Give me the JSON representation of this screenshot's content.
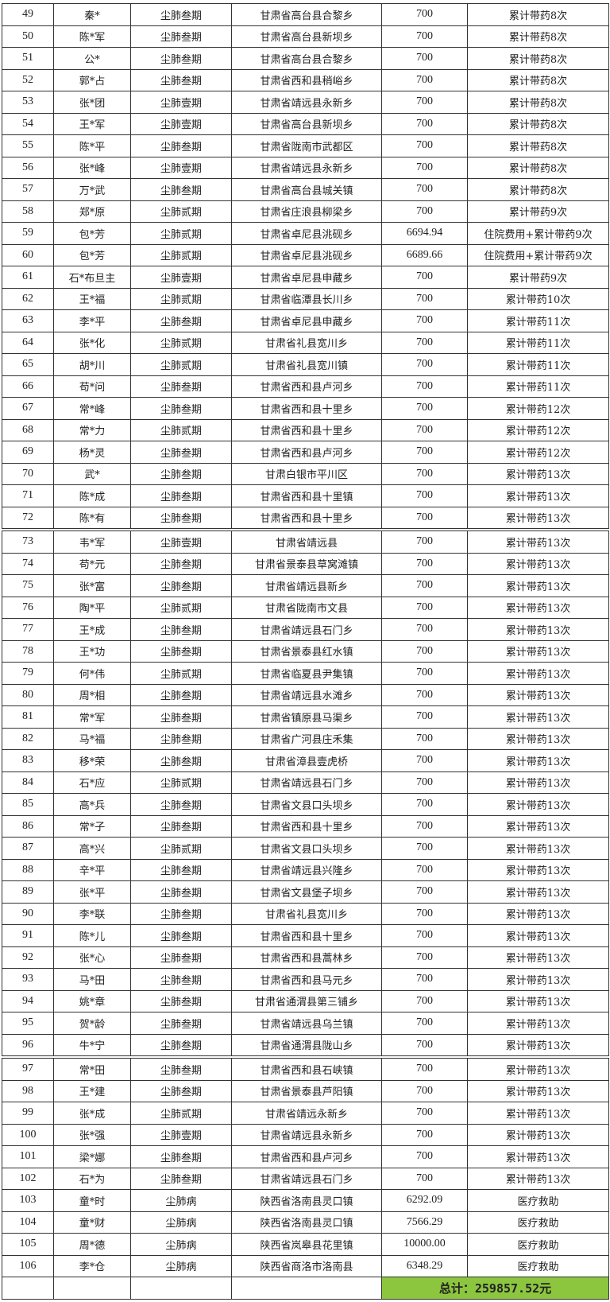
{
  "rows": [
    [
      "49",
      "秦*",
      "尘肺叁期",
      "甘肃省高台县合黎乡",
      "700",
      "累计带药8次"
    ],
    [
      "50",
      "陈*军",
      "尘肺叁期",
      "甘肃省高台县新坝乡",
      "700",
      "累计带药8次"
    ],
    [
      "51",
      "公*",
      "尘肺叁期",
      "甘肃省高台县合黎乡",
      "700",
      "累计带药8次"
    ],
    [
      "52",
      "郭*占",
      "尘肺叁期",
      "甘肃省西和县稍峪乡",
      "700",
      "累计带药8次"
    ],
    [
      "53",
      "张*团",
      "尘肺壹期",
      "甘肃省靖远县永新乡",
      "700",
      "累计带药8次"
    ],
    [
      "54",
      "王*军",
      "尘肺壹期",
      "甘肃省高台县新坝乡",
      "700",
      "累计带药8次"
    ],
    [
      "55",
      "陈*平",
      "尘肺叁期",
      "甘肃省陇南市武都区",
      "700",
      "累计带药8次"
    ],
    [
      "56",
      "张*峰",
      "尘肺壹期",
      "甘肃省靖远县永新乡",
      "700",
      "累计带药8次"
    ],
    [
      "57",
      "万*武",
      "尘肺叁期",
      "甘肃省高台县城关镇",
      "700",
      "累计带药8次"
    ],
    [
      "58",
      "郑*原",
      "尘肺贰期",
      "甘肃省庄浪县柳梁乡",
      "700",
      "累计带药9次"
    ],
    [
      "59",
      "包*芳",
      "尘肺贰期",
      "甘肃省卓尼县洮砚乡",
      "6694.94",
      "住院费用+累计带药9次"
    ],
    [
      "60",
      "包*芳",
      "尘肺贰期",
      "甘肃省卓尼县洮砚乡",
      "6689.66",
      "住院费用+累计带药9次"
    ],
    [
      "61",
      "石*布旦主",
      "尘肺壹期",
      "甘肃省卓尼县申藏乡",
      "700",
      "累计带药9次"
    ],
    [
      "62",
      "王*福",
      "尘肺贰期",
      "甘肃省临潭县长川乡",
      "700",
      "累计带药10次"
    ],
    [
      "63",
      "李*平",
      "尘肺叁期",
      "甘肃省卓尼县申藏乡",
      "700",
      "累计带药11次"
    ],
    [
      "64",
      "张*化",
      "尘肺贰期",
      "甘肃省礼县宽川乡",
      "700",
      "累计带药11次"
    ],
    [
      "65",
      "胡*川",
      "尘肺贰期",
      "甘肃省礼县宽川镇",
      "700",
      "累计带药11次"
    ],
    [
      "66",
      "苟*问",
      "尘肺叁期",
      "甘肃省西和县卢河乡",
      "700",
      "累计带药11次"
    ],
    [
      "67",
      "常*峰",
      "尘肺叁期",
      "甘肃省西和县十里乡",
      "700",
      "累计带药12次"
    ],
    [
      "68",
      "常*力",
      "尘肺贰期",
      "甘肃省西和县十里乡",
      "700",
      "累计带药12次"
    ],
    [
      "69",
      "杨*灵",
      "尘肺叁期",
      "甘肃省西和县卢河乡",
      "700",
      "累计带药12次"
    ],
    [
      "70",
      "武*",
      "尘肺叁期",
      "甘肃白银市平川区",
      "700",
      "累计带药13次"
    ],
    [
      "71",
      "陈*成",
      "尘肺叁期",
      "甘肃省西和县十里镇",
      "700",
      "累计带药13次"
    ],
    [
      "72",
      "陈*有",
      "尘肺叁期",
      "甘肃省西和县十里乡",
      "700",
      "累计带药13次"
    ],
    [
      "73",
      "韦*军",
      "尘肺壹期",
      "甘肃省靖远县",
      "700",
      "累计带药13次"
    ],
    [
      "74",
      "苟*元",
      "尘肺叁期",
      "甘肃省景泰县草窝滩镇",
      "700",
      "累计带药13次"
    ],
    [
      "75",
      "张*富",
      "尘肺叁期",
      "甘肃省靖远县新乡",
      "700",
      "累计带药13次"
    ],
    [
      "76",
      "陶*平",
      "尘肺贰期",
      "甘肃省陇南市文县",
      "700",
      "累计带药13次"
    ],
    [
      "77",
      "王*成",
      "尘肺叁期",
      "甘肃省靖远县石门乡",
      "700",
      "累计带药13次"
    ],
    [
      "78",
      "王*功",
      "尘肺叁期",
      "甘肃省景泰县红水镇",
      "700",
      "累计带药13次"
    ],
    [
      "79",
      "何*伟",
      "尘肺贰期",
      "甘肃省临夏县尹集镇",
      "700",
      "累计带药13次"
    ],
    [
      "80",
      "周*相",
      "尘肺叁期",
      "甘肃省靖远县水滩乡",
      "700",
      "累计带药13次"
    ],
    [
      "81",
      "常*军",
      "尘肺叁期",
      "甘肃省镇原县马渠乡",
      "700",
      "累计带药13次"
    ],
    [
      "82",
      "马*福",
      "尘肺叁期",
      "甘肃省广河县庄禾集",
      "700",
      "累计带药13次"
    ],
    [
      "83",
      "移*荣",
      "尘肺叁期",
      "甘肃省漳县壹虎桥",
      "700",
      "累计带药13次"
    ],
    [
      "84",
      "石*应",
      "尘肺贰期",
      "甘肃省靖远县石门乡",
      "700",
      "累计带药13次"
    ],
    [
      "85",
      "高*兵",
      "尘肺叁期",
      "甘肃省文县口头坝乡",
      "700",
      "累计带药13次"
    ],
    [
      "86",
      "常*子",
      "尘肺叁期",
      "甘肃省西和县十里乡",
      "700",
      "累计带药13次"
    ],
    [
      "87",
      "高*兴",
      "尘肺贰期",
      "甘肃省文县口头坝乡",
      "700",
      "累计带药13次"
    ],
    [
      "88",
      "辛*平",
      "尘肺叁期",
      "甘肃省靖远县兴隆乡",
      "700",
      "累计带药13次"
    ],
    [
      "89",
      "张*平",
      "尘肺叁期",
      "甘肃省文县堡子坝乡",
      "700",
      "累计带药13次"
    ],
    [
      "90",
      "李*联",
      "尘肺叁期",
      "甘肃省礼县宽川乡",
      "700",
      "累计带药13次"
    ],
    [
      "91",
      "陈*儿",
      "尘肺叁期",
      "甘肃省西和县十里乡",
      "700",
      "累计带药13次"
    ],
    [
      "92",
      "张*心",
      "尘肺叁期",
      "甘肃省西和县蒿林乡",
      "700",
      "累计带药13次"
    ],
    [
      "93",
      "马*田",
      "尘肺叁期",
      "甘肃省西和县马元乡",
      "700",
      "累计带药13次"
    ],
    [
      "94",
      "姚*章",
      "尘肺叁期",
      "甘肃省通渭县第三铺乡",
      "700",
      "累计带药13次"
    ],
    [
      "95",
      "贺*龄",
      "尘肺叁期",
      "甘肃省靖远县乌兰镇",
      "700",
      "累计带药13次"
    ],
    [
      "96",
      "牛*宁",
      "尘肺叁期",
      "甘肃省通渭县陇山乡",
      "700",
      "累计带药13次"
    ],
    [
      "97",
      "常*田",
      "尘肺叁期",
      "甘肃省西和县石峡镇",
      "700",
      "累计带药13次"
    ],
    [
      "98",
      "王*建",
      "尘肺叁期",
      "甘肃省景泰县芦阳镇",
      "700",
      "累计带药13次"
    ],
    [
      "99",
      "张*成",
      "尘肺贰期",
      "甘肃省靖远永新乡",
      "700",
      "累计带药13次"
    ],
    [
      "100",
      "张*强",
      "尘肺壹期",
      "甘肃省靖远县永新乡",
      "700",
      "累计带药13次"
    ],
    [
      "101",
      "梁*娜",
      "尘肺叁期",
      "甘肃省西和县卢河乡",
      "700",
      "累计带药13次"
    ],
    [
      "102",
      "石*为",
      "尘肺叁期",
      "甘肃省靖远县石门乡",
      "700",
      "累计带药13次"
    ],
    [
      "103",
      "童*时",
      "尘肺病",
      "陕西省洛南县灵口镇",
      "6292.09",
      "医疗救助"
    ],
    [
      "104",
      "童*财",
      "尘肺病",
      "陕西省洛南县灵口镇",
      "7566.29",
      "医疗救助"
    ],
    [
      "105",
      "周*德",
      "尘肺病",
      "陕西省岚皋县花里镇",
      "10000.00",
      "医疗救助"
    ],
    [
      "106",
      "李*仓",
      "尘肺病",
      "陕西省商洛市洛南县",
      "6348.29",
      "医疗救助"
    ]
  ],
  "total_label": "总计：259857.52元",
  "colors": {
    "total_bg": "#8cc63f",
    "border": "#333333"
  }
}
